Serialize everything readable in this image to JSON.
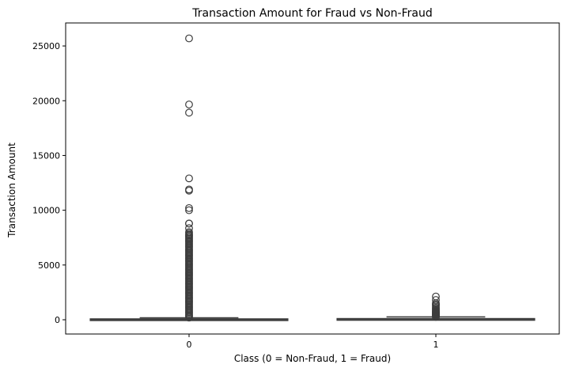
{
  "chart_data": {
    "type": "box",
    "title": "Transaction Amount for Fraud vs Non-Fraud",
    "xlabel": "Class (0 = Non-Fraud, 1 = Fraud)",
    "ylabel": "Transaction Amount",
    "categories": [
      "0",
      "1"
    ],
    "ylim": [
      -1300,
      27100
    ],
    "yticks": [
      0,
      5000,
      10000,
      15000,
      20000,
      25000
    ],
    "grid": false,
    "legend": "none",
    "box_color": "#ffffff",
    "line_color": "#3d3d3d",
    "series": [
      {
        "category": "0",
        "q1": 6,
        "median": 22,
        "q3": 78,
        "whisker_low": 0,
        "whisker_high": 185,
        "outliers": [
          25691,
          19656,
          18910,
          12910,
          11898,
          11790,
          10199,
          10000,
          8790,
          8787,
          8360,
          8000,
          7880,
          7766,
          7700,
          7600,
          7500,
          7400,
          7300,
          7200,
          7100,
          7000,
          6900,
          6800,
          6700,
          6600,
          6500,
          6400,
          6300,
          6200,
          6100,
          6000,
          5900,
          5800,
          5700,
          5600,
          5500,
          5400,
          5300,
          5200,
          5100,
          5000,
          4900,
          4800,
          4700,
          4600,
          4500,
          4400,
          4300,
          4200,
          4100,
          4000,
          3900,
          3800,
          3700,
          3600,
          3500,
          3400,
          3300,
          3200,
          3100,
          3000,
          2900,
          2800,
          2700,
          2600,
          2500,
          2400,
          2300,
          2200,
          2100,
          2000,
          1900,
          1800,
          1700,
          1600,
          1500,
          1400,
          1300,
          1200,
          1100,
          1000,
          900,
          800,
          700,
          600,
          500,
          400,
          300,
          200
        ]
      },
      {
        "category": "1",
        "q1": 1,
        "median": 9,
        "q3": 106,
        "whisker_low": 0,
        "whisker_high": 260,
        "outliers": [
          2126,
          1809,
          1504,
          1389,
          1354,
          1218,
          1097,
          996,
          925,
          829,
          776,
          720,
          667,
          634,
          600,
          566,
          540,
          512,
          480,
          450,
          420,
          390,
          364,
          340,
          318,
          296,
          280,
          265
        ]
      }
    ]
  }
}
